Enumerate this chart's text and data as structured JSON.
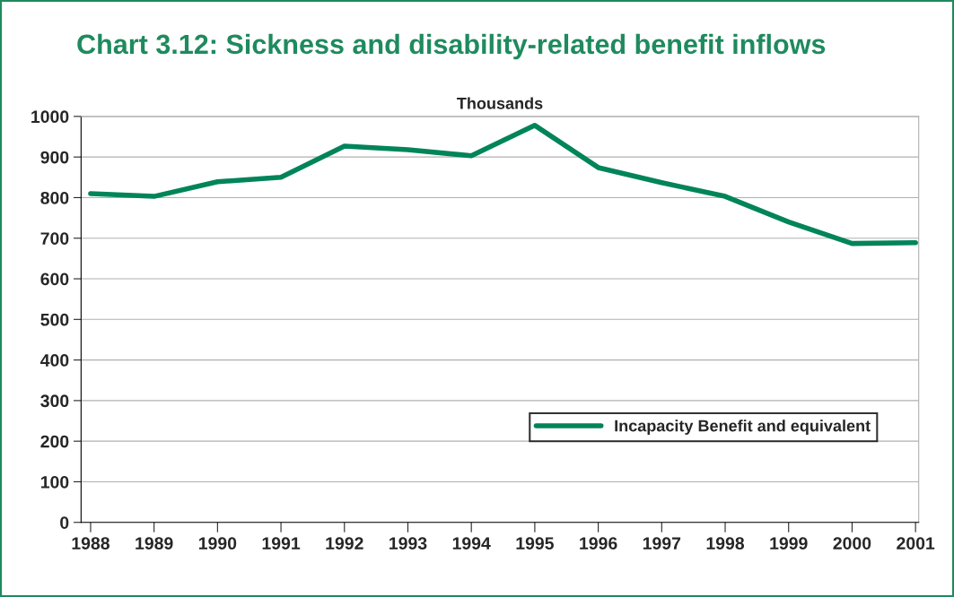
{
  "chart_data": {
    "type": "line",
    "title": "Chart 3.12: Sickness and disability-related benefit inflows",
    "ylabel": "Thousands",
    "categories": [
      "1988",
      "1989",
      "1990",
      "1991",
      "1992",
      "1993",
      "1994",
      "1995",
      "1996",
      "1997",
      "1998",
      "1999",
      "2000",
      "2001"
    ],
    "series": [
      {
        "name": "Incapacity Benefit and equivalent",
        "color": "#00845a",
        "values": [
          810,
          803,
          839,
          850,
          927,
          918,
          903,
          978,
          874,
          837,
          803,
          740,
          687,
          689
        ]
      }
    ],
    "ylim": [
      0,
      1000
    ],
    "yticks": [
      0,
      100,
      200,
      300,
      400,
      500,
      600,
      700,
      800,
      900,
      1000
    ],
    "grid": "y",
    "legend": "lower right",
    "marker": "none",
    "line_style": "solid"
  }
}
